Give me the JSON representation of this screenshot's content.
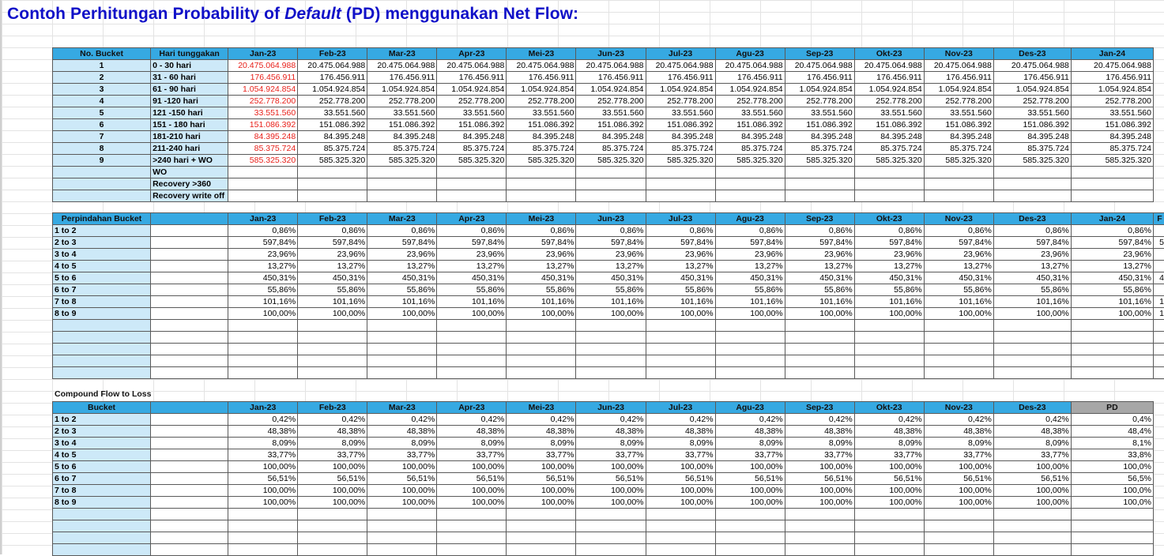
{
  "title": {
    "prefix": "Contoh Perhitungan Probability of ",
    "italic": "Default",
    "suffix": " (PD) menggunakan Net Flow:"
  },
  "months": [
    "Jan-23",
    "Feb-23",
    "Mar-23",
    "Apr-23",
    "Mei-23",
    "Jun-23",
    "Jul-23",
    "Agu-23",
    "Sep-23",
    "Okt-23",
    "Nov-23",
    "Des-23",
    "Jan-24"
  ],
  "table1": {
    "headers": {
      "no": "No. Bucket",
      "hari": "Hari tunggakan"
    },
    "rows": [
      {
        "no": "1",
        "label": "0 - 30 hari",
        "value": "20.475.064.988"
      },
      {
        "no": "2",
        "label": "31 - 60 hari",
        "value": "176.456.911"
      },
      {
        "no": "3",
        "label": "61 - 90 hari",
        "value": "1.054.924.854"
      },
      {
        "no": "4",
        "label": "91 -120 hari",
        "value": "252.778.200"
      },
      {
        "no": "5",
        "label": "121 -150 hari",
        "value": "33.551.560"
      },
      {
        "no": "6",
        "label": "151 - 180 hari",
        "value": "151.086.392"
      },
      {
        "no": "7",
        "label": "181-210 hari",
        "value": "84.395.248"
      },
      {
        "no": "8",
        "label": "211-240 hari",
        "value": "85.375.724"
      },
      {
        "no": "9",
        "label": ">240 hari + WO",
        "value": "585.325.320"
      },
      {
        "no": "",
        "label": "WO",
        "value": ""
      },
      {
        "no": "",
        "label": "Recovery >360",
        "value": ""
      },
      {
        "no": "",
        "label": "Recovery write off",
        "value": ""
      }
    ]
  },
  "table2": {
    "header": "Perpindahan Bucket",
    "edge_col_header": "F",
    "rows": [
      {
        "label": "1 to 2",
        "value": "0,86%",
        "edge": ""
      },
      {
        "label": "2 to 3",
        "value": "597,84%",
        "edge": "5"
      },
      {
        "label": "3 to 4",
        "value": "23,96%",
        "edge": ""
      },
      {
        "label": "4 to 5",
        "value": "13,27%",
        "edge": ""
      },
      {
        "label": "5 to 6",
        "value": "450,31%",
        "edge": "4"
      },
      {
        "label": "6 to 7",
        "value": "55,86%",
        "edge": ""
      },
      {
        "label": "7 to 8",
        "value": "101,16%",
        "edge": "1"
      },
      {
        "label": "8 to 9",
        "value": "100,00%",
        "edge": "1"
      }
    ],
    "empty_rows": 5
  },
  "table3": {
    "caption": "Compound Flow to Loss",
    "header": "Bucket",
    "pd_header": "PD",
    "rows": [
      {
        "label": "1 to 2",
        "value": "0,42%",
        "pd": "0,4%"
      },
      {
        "label": "2 to 3",
        "value": "48,38%",
        "pd": "48,4%"
      },
      {
        "label": "3 to 4",
        "value": "8,09%",
        "pd": "8,1%"
      },
      {
        "label": "4 to 5",
        "value": "33,77%",
        "pd": "33,8%"
      },
      {
        "label": "5 to 6",
        "value": "100,00%",
        "pd": "100,0%"
      },
      {
        "label": "6 to 7",
        "value": "56,51%",
        "pd": "56,5%"
      },
      {
        "label": "7 to 8",
        "value": "100,00%",
        "pd": "100,0%"
      },
      {
        "label": "8 to 9",
        "value": "100,00%",
        "pd": "100,0%"
      }
    ],
    "empty_rows": 4
  },
  "colors": {
    "header_blue": "#36a9e2",
    "label_blue": "#cde9f8",
    "title_blue": "#1010c8",
    "red_text": "#e8201a",
    "pd_gray": "#a7a7a7"
  }
}
